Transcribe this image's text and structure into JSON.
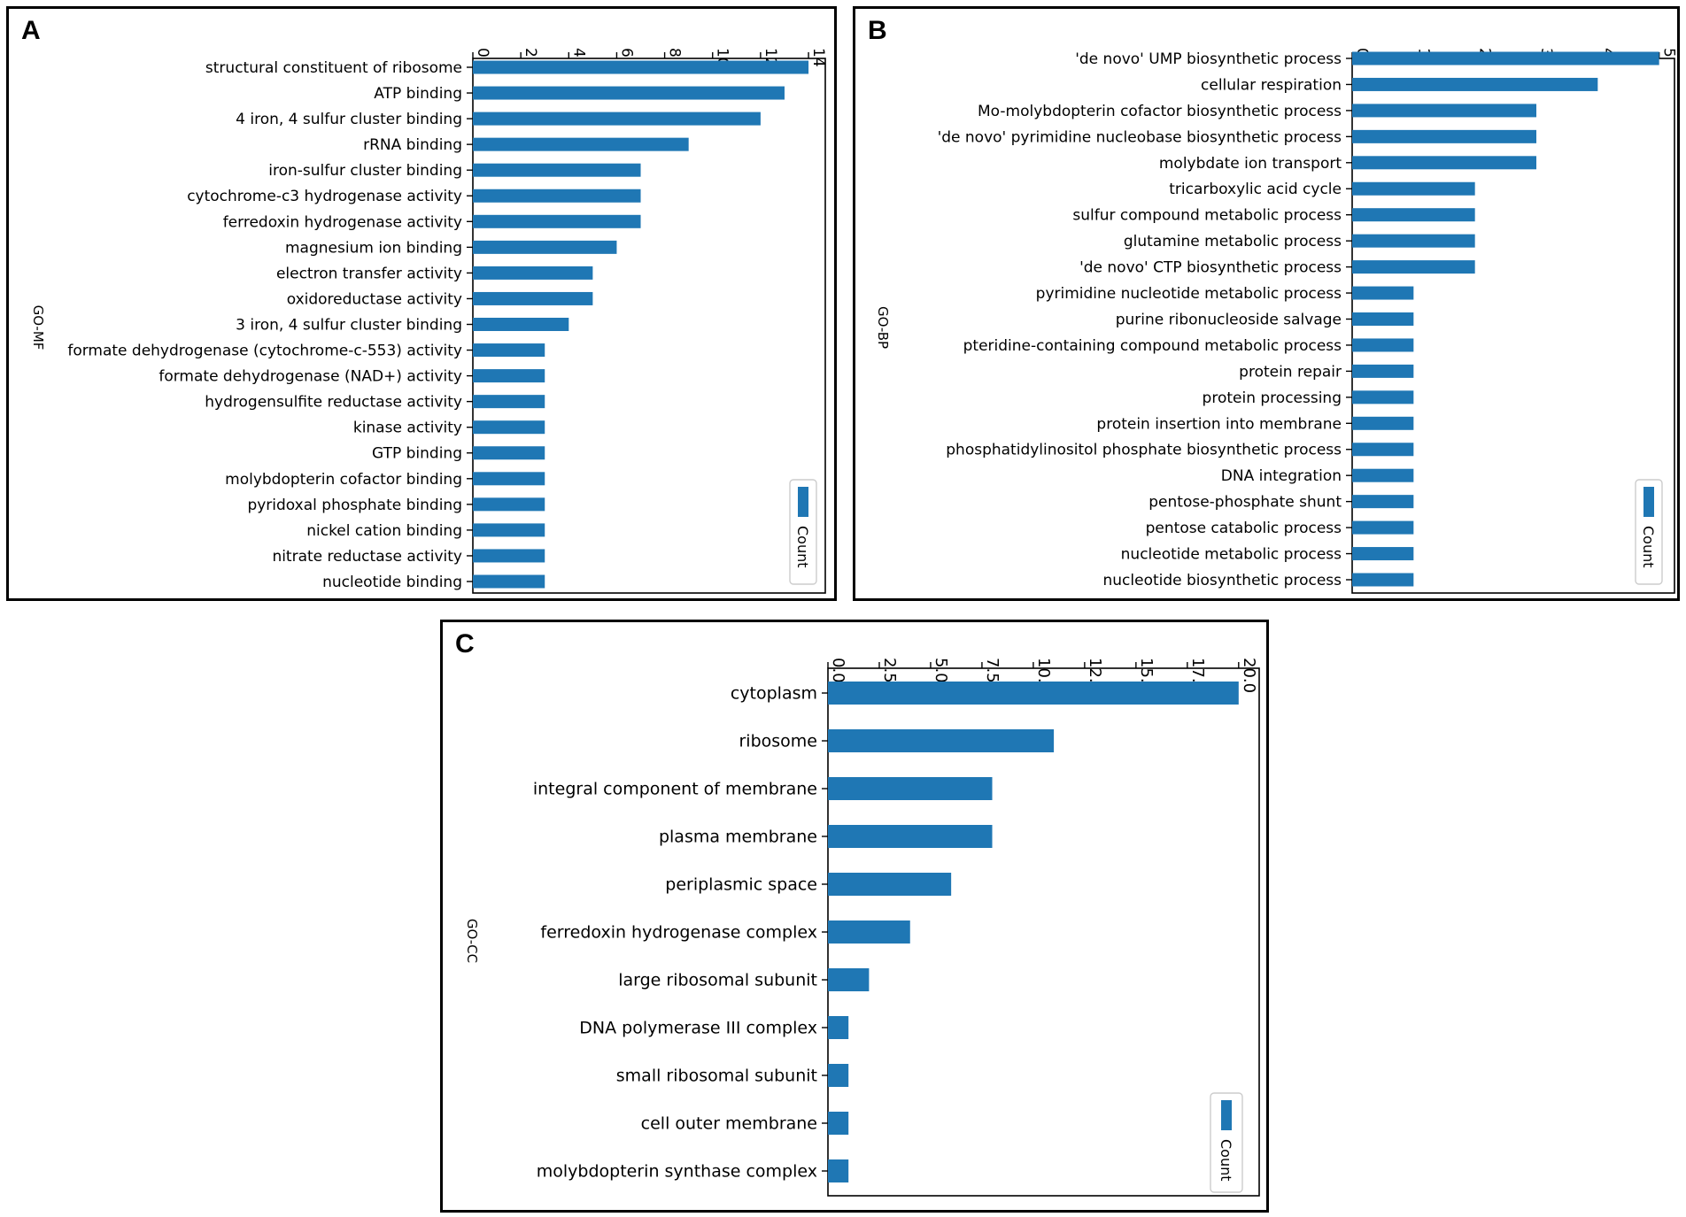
{
  "colors": {
    "bar": "#1f77b4",
    "frame": "#000000"
  },
  "chart_data": [
    {
      "panel": "A",
      "type": "bar",
      "orientation": "horizontal",
      "ylabel": "GO-MF",
      "xlim": [
        0,
        14.7
      ],
      "xticks": [
        0,
        2,
        4,
        6,
        8,
        10,
        12,
        14
      ],
      "legend": "Count",
      "legend_position": "bottom-right",
      "categories": [
        "structural constituent of ribosome",
        "ATP binding",
        "4 iron, 4 sulfur cluster binding",
        "rRNA binding",
        "iron-sulfur cluster binding",
        "cytochrome-c3 hydrogenase activity",
        "ferredoxin hydrogenase activity",
        "magnesium ion binding",
        "electron transfer activity",
        "oxidoreductase activity",
        "3 iron, 4 sulfur cluster binding",
        "formate dehydrogenase (cytochrome-c-553) activity",
        "formate dehydrogenase (NAD+) activity",
        "hydrogensulfite reductase activity",
        "kinase activity",
        "GTP binding",
        "molybdopterin cofactor binding",
        "pyridoxal phosphate binding",
        "nickel cation binding",
        "nitrate reductase activity",
        "nucleotide binding"
      ],
      "values": [
        14,
        13,
        12,
        9,
        7,
        7,
        7,
        6,
        5,
        5,
        4,
        3,
        3,
        3,
        3,
        3,
        3,
        3,
        3,
        3,
        3
      ]
    },
    {
      "panel": "B",
      "type": "bar",
      "orientation": "horizontal",
      "ylabel": "GO-BP",
      "xlim": [
        0,
        5.25
      ],
      "xticks": [
        0,
        1,
        2,
        3,
        4,
        5
      ],
      "legend": "Count",
      "legend_position": "bottom-right",
      "categories": [
        "'de novo' UMP biosynthetic process",
        "cellular respiration",
        "Mo-molybdopterin cofactor biosynthetic process",
        "'de novo' pyrimidine nucleobase biosynthetic process",
        "molybdate ion transport",
        "tricarboxylic acid cycle",
        "sulfur compound metabolic process",
        "glutamine metabolic process",
        "'de novo' CTP biosynthetic process",
        "pyrimidine nucleotide metabolic process",
        "purine ribonucleoside salvage",
        "pteridine-containing compound metabolic process",
        "protein repair",
        "protein processing",
        "protein insertion into membrane",
        "phosphatidylinositol phosphate biosynthetic process",
        "DNA integration",
        "pentose-phosphate shunt",
        "pentose catabolic process",
        "nucleotide metabolic process",
        "nucleotide biosynthetic process"
      ],
      "values": [
        5,
        4,
        3,
        3,
        3,
        2,
        2,
        2,
        2,
        1,
        1,
        1,
        1,
        1,
        1,
        1,
        1,
        1,
        1,
        1,
        1
      ]
    },
    {
      "panel": "C",
      "type": "bar",
      "orientation": "horizontal",
      "ylabel": "GO-CC",
      "xlim": [
        0,
        21
      ],
      "xticks": [
        "0.0",
        "2.5",
        "5.0",
        "7.5",
        "10.0",
        "12.5",
        "15.0",
        "17.5",
        "20.0"
      ],
      "legend": "Count",
      "legend_position": "bottom-right",
      "categories": [
        "cytoplasm",
        "ribosome",
        "integral component of membrane",
        "plasma membrane",
        "periplasmic space",
        "ferredoxin hydrogenase complex",
        "large ribosomal subunit",
        "DNA polymerase III complex",
        "small ribosomal subunit",
        "cell outer membrane",
        "molybdopterin synthase complex"
      ],
      "values": [
        20,
        11,
        8,
        8,
        6,
        4,
        2,
        1,
        1,
        1,
        1
      ]
    }
  ]
}
